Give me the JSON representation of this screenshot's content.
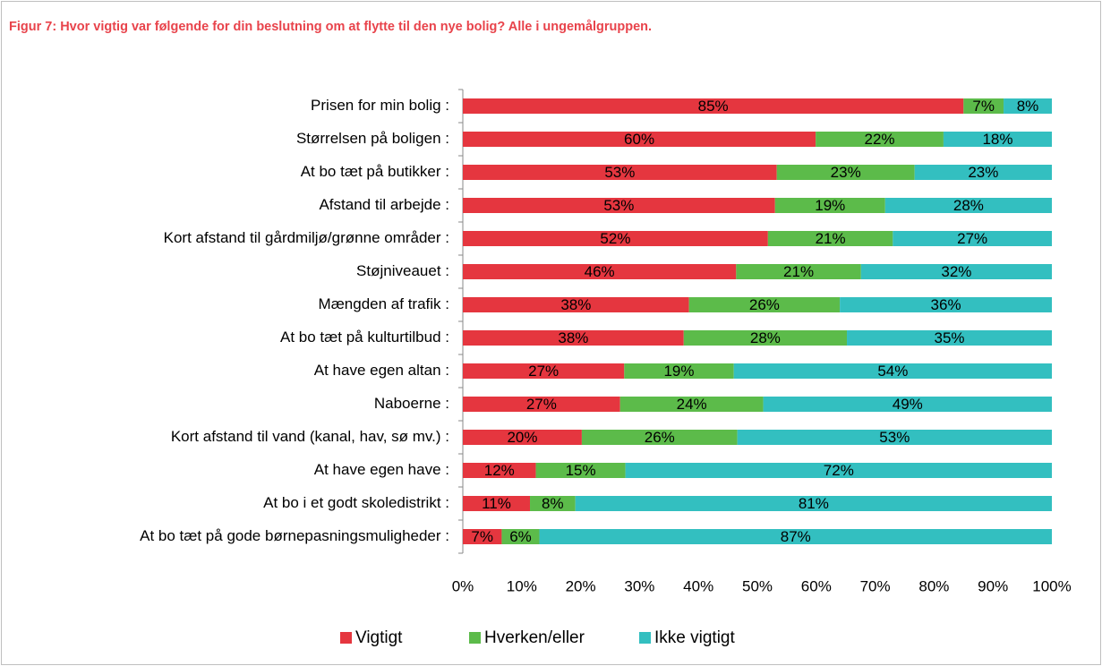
{
  "chart_data": {
    "type": "stacked_barh",
    "title": "Figur 7: Hvor vigtig var følgende for din beslutning om at flytte til den nye bolig? Alle i ungemålgruppen.",
    "categories": [
      "Prisen for min bolig :",
      "Størrelsen på boligen :",
      "At bo tæt på butikker :",
      "Afstand til arbejde :",
      "Kort afstand til gårdmiljø/grønne områder :",
      "Støjniveauet :",
      "Mængden af trafik :",
      "At bo tæt på kulturtilbud :",
      "At have egen altan :",
      "Naboerne :",
      "Kort afstand til vand (kanal, hav, sø mv.) :",
      "At have egen have :",
      "At bo i et godt skoledistrikt :",
      "At bo tæt på gode børnepasningsmuligheder :"
    ],
    "series": [
      {
        "name": "Vigtigt",
        "color": "#e5363f",
        "values": [
          85,
          59.9,
          53.3,
          53.0,
          51.8,
          46.4,
          38.4,
          37.5,
          27.4,
          26.7,
          20.2,
          12.4,
          11.4,
          6.6
        ],
        "value_labels": [
          "85%",
          "60%",
          "53%",
          "53%",
          "52%",
          "46%",
          "38%",
          "38%",
          "27%",
          "27%",
          "20%",
          "12%",
          "11%",
          "7%"
        ]
      },
      {
        "name": "Hverken/eller",
        "color": "#5cbb4a",
        "values": [
          6.8,
          21.7,
          23.4,
          18.7,
          21.2,
          21.2,
          25.6,
          27.7,
          18.6,
          24.3,
          26.4,
          15.2,
          7.7,
          6.4
        ],
        "value_labels": [
          "7%",
          "22%",
          "23%",
          "19%",
          "21%",
          "21%",
          "26%",
          "28%",
          "19%",
          "24%",
          "26%",
          "15%",
          "8%",
          "6%"
        ]
      },
      {
        "name": "Ikke vigtigt",
        "color": "#33bfc0",
        "values": [
          8.2,
          18.4,
          23.3,
          28.3,
          27.0,
          32.4,
          36.0,
          34.8,
          54.0,
          49.0,
          53.4,
          72.4,
          80.9,
          87.0
        ],
        "value_labels": [
          "8%",
          "18%",
          "23%",
          "28%",
          "27%",
          "32%",
          "36%",
          "35%",
          "54%",
          "49%",
          "53%",
          "72%",
          "81%",
          "87%"
        ]
      }
    ],
    "xlim": [
      0,
      100
    ],
    "xticks": [
      {
        "value": 0,
        "label": "0%"
      },
      {
        "value": 10,
        "label": "10%"
      },
      {
        "value": 20,
        "label": "20%"
      },
      {
        "value": 30,
        "label": "30%"
      },
      {
        "value": 40,
        "label": "40%"
      },
      {
        "value": 50,
        "label": "50%"
      },
      {
        "value": 60,
        "label": "60%"
      },
      {
        "value": 70,
        "label": "70%"
      },
      {
        "value": 80,
        "label": "80%"
      },
      {
        "value": 90,
        "label": "90%"
      },
      {
        "value": 100,
        "label": "100%"
      }
    ],
    "legend": "bottom"
  }
}
